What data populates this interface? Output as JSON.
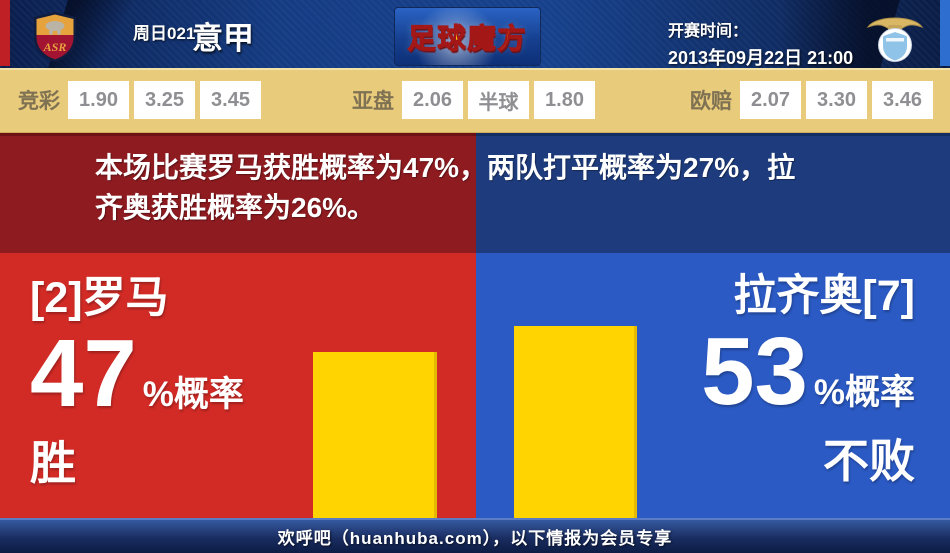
{
  "header": {
    "match_code": "周日021",
    "league": "意甲",
    "logo_text": "足球魔方",
    "kickoff_label": "开赛时间：",
    "kickoff_time": "2013年09月22日 21:00",
    "home_crest": "roma-crest",
    "away_crest": "lazio-crest"
  },
  "odds_bar": {
    "groups": [
      {
        "label": "竞彩",
        "values": [
          "1.90",
          "3.25",
          "3.45"
        ]
      },
      {
        "label": "亚盘",
        "values": [
          "2.06",
          "半球",
          "1.80"
        ]
      },
      {
        "label": "欧赔",
        "values": [
          "2.07",
          "3.30",
          "3.46"
        ]
      }
    ]
  },
  "summary": {
    "text": "本场比赛罗马获胜概率为47%，两队打平概率为27%，拉\n齐奥获胜概率为26%。"
  },
  "teams": {
    "home": {
      "name": "[2]罗马",
      "percent": "47",
      "percent_suffix": "%概率",
      "outcome": "胜",
      "percent_value": 47
    },
    "away": {
      "name": "拉齐奥[7]",
      "percent": "53",
      "percent_suffix": "%概率",
      "outcome": "不败",
      "percent_value": 53
    }
  },
  "footer": {
    "text": "欢呼吧（huanhuba.com），以下情报为会员专享"
  },
  "colors": {
    "home_panel": "#d22b26",
    "away_panel": "#2b5ac4",
    "home_band": "#8d1b20",
    "away_band": "#1e3c7d",
    "bar_fill": "#ffd400",
    "odds_bar_bg": "#e9cb7c",
    "header_bg": "#153c83"
  }
}
